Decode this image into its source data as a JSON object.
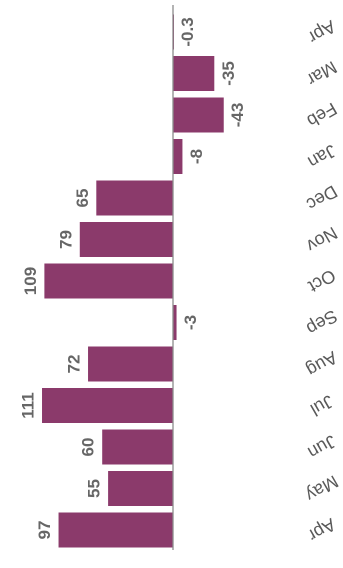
{
  "chart_data": {
    "type": "bar",
    "orientation": "horizontal",
    "rotation_degrees": 180,
    "categories": [
      "Apr",
      "May",
      "Jun",
      "Jul",
      "Aug",
      "Sep",
      "Oct",
      "Nov",
      "Dec",
      "Jan",
      "Feb",
      "Mar",
      "Apr"
    ],
    "values": [
      97,
      55,
      60,
      111,
      72,
      -3,
      109,
      79,
      65,
      -8,
      -43,
      -35,
      -0.3
    ],
    "value_labels": [
      "97",
      "55",
      "60",
      "111",
      "72",
      "-3",
      "109",
      "79",
      "65",
      "-8",
      "-43",
      "-35",
      "-0.3"
    ],
    "title": "",
    "xlabel": "",
    "ylabel": "",
    "bar_color": "#8b3a6b",
    "axis_color": "#8c8c8c",
    "grid": false,
    "legend": "none"
  }
}
